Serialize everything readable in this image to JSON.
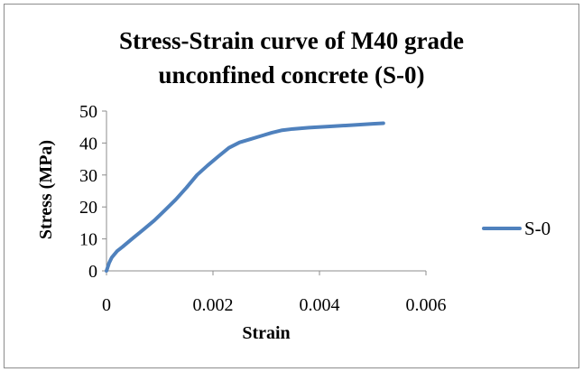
{
  "chart_data": {
    "type": "line",
    "title_lines": [
      "Stress-Strain curve of M40 grade",
      "unconfined concrete (S-0)"
    ],
    "xlabel": "Strain",
    "ylabel": "Stress (MPa)",
    "xlim": [
      0,
      0.006
    ],
    "ylim": [
      0,
      50
    ],
    "x_ticks": [
      0,
      0.002,
      0.004,
      0.006
    ],
    "x_tick_labels": [
      "0",
      "0.002",
      "0.004",
      "0.006"
    ],
    "y_ticks": [
      0,
      10,
      20,
      30,
      40,
      50
    ],
    "y_tick_labels": [
      "0",
      "10",
      "20",
      "30",
      "40",
      "50"
    ],
    "grid": false,
    "legend_position": "right",
    "series": [
      {
        "name": "S-0",
        "color": "#4F81BD",
        "x": [
          0,
          5e-05,
          0.0001,
          0.0002,
          0.0003,
          0.0005,
          0.0007,
          0.0009,
          0.0011,
          0.0013,
          0.0015,
          0.0017,
          0.0019,
          0.0021,
          0.0023,
          0.0025,
          0.0027,
          0.0029,
          0.0031,
          0.0033,
          0.0035,
          0.0038,
          0.0042,
          0.0046,
          0.005,
          0.0052
        ],
        "values": [
          0,
          2.5,
          4.2,
          6.2,
          7.5,
          10.3,
          13,
          15.8,
          19,
          22.3,
          26,
          30,
          33,
          35.8,
          38.5,
          40.2,
          41.2,
          42.2,
          43.2,
          44,
          44.4,
          44.8,
          45.2,
          45.6,
          46,
          46.2
        ]
      }
    ]
  }
}
